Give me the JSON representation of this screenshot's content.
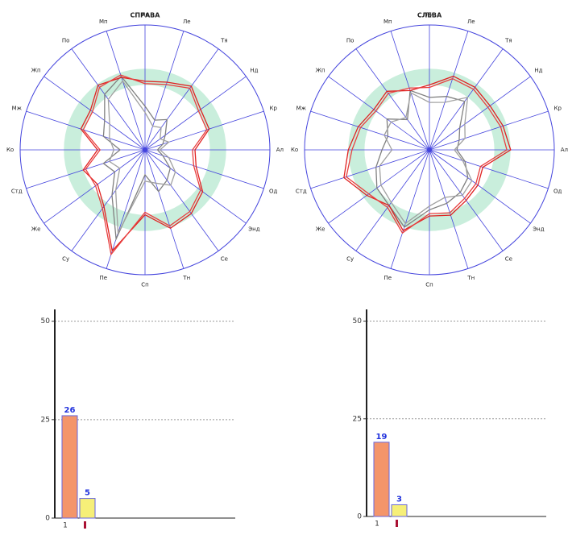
{
  "chart_data": [
    {
      "type": "radar",
      "title": "СПРАВА",
      "categories": [
        "Ли",
        "Ле",
        "Тя",
        "Нд",
        "Кр",
        "Ал",
        "Од",
        "Энд",
        "Се",
        "Тн",
        "Сп",
        "Пе",
        "Су",
        "Же",
        "Стд",
        "Ко",
        "Мж",
        "Жп",
        "По",
        "Мп"
      ],
      "rlim": [
        0,
        100
      ],
      "norm_band": [
        52,
        65
      ],
      "band_color": "#c9eedc",
      "axis_color": "#4444dd",
      "series": [
        {
          "color": "#808080",
          "values": [
            35,
            25,
            30,
            20,
            15,
            10,
            15,
            25,
            30,
            35,
            20,
            75,
            45,
            30,
            35,
            20,
            35,
            40,
            55,
            62
          ]
        },
        {
          "color": "#a0a0a0",
          "values": [
            30,
            20,
            22,
            15,
            20,
            12,
            20,
            30,
            35,
            28,
            25,
            70,
            40,
            25,
            30,
            25,
            30,
            35,
            50,
            58
          ]
        },
        {
          "color": "#e02020",
          "values": [
            55,
            57,
            63,
            55,
            54,
            40,
            43,
            57,
            63,
            66,
            52,
            85,
            56,
            47,
            52,
            38,
            54,
            54,
            64,
            61
          ]
        },
        {
          "color": "#e84040",
          "values": [
            53,
            55,
            61,
            53,
            52,
            38,
            41,
            55,
            61,
            64,
            50,
            88,
            58,
            49,
            50,
            36,
            52,
            52,
            62,
            63
          ]
        }
      ]
    },
    {
      "type": "radar",
      "title": "СЛЕВА",
      "categories": [
        "Ли",
        "Ле",
        "Тя",
        "Нд",
        "Кр",
        "Ал",
        "Од",
        "Энд",
        "Се",
        "Тн",
        "Сп",
        "Пе",
        "Су",
        "Же",
        "Стд",
        "Ко",
        "Мж",
        "Жп",
        "По",
        "Мп"
      ],
      "rlim": [
        0,
        100
      ],
      "norm_band": [
        52,
        65
      ],
      "band_color": "#c9eedc",
      "axis_color": "#4444dd",
      "series": [
        {
          "color": "#808080",
          "values": [
            42,
            45,
            48,
            30,
            25,
            22,
            30,
            38,
            42,
            45,
            48,
            65,
            55,
            52,
            45,
            38,
            35,
            42,
            30,
            50
          ]
        },
        {
          "color": "#a0a0a0",
          "values": [
            38,
            40,
            52,
            35,
            30,
            20,
            28,
            42,
            45,
            40,
            45,
            62,
            52,
            48,
            42,
            30,
            38,
            38,
            32,
            48
          ]
        },
        {
          "color": "#e02020",
          "values": [
            52,
            62,
            62,
            60,
            62,
            65,
            45,
            48,
            50,
            55,
            53,
            68,
            55,
            62,
            72,
            65,
            60,
            55,
            58,
            50
          ]
        },
        {
          "color": "#e84040",
          "values": [
            50,
            60,
            60,
            58,
            60,
            62,
            43,
            46,
            48,
            53,
            51,
            70,
            57,
            60,
            70,
            62,
            58,
            53,
            56,
            52
          ]
        }
      ]
    },
    {
      "type": "bar",
      "categories": [
        "1",
        null
      ],
      "values": [
        26,
        5
      ],
      "colors": [
        "#f4956a",
        "#f6ef78"
      ],
      "ylim": [
        0,
        53
      ],
      "yticks": [
        0,
        25,
        50
      ],
      "grid": true
    },
    {
      "type": "bar",
      "categories": [
        "1",
        null
      ],
      "values": [
        19,
        3
      ],
      "colors": [
        "#f4956a",
        "#f6ef78"
      ],
      "ylim": [
        0,
        53
      ],
      "yticks": [
        0,
        25,
        50
      ],
      "grid": true
    }
  ]
}
